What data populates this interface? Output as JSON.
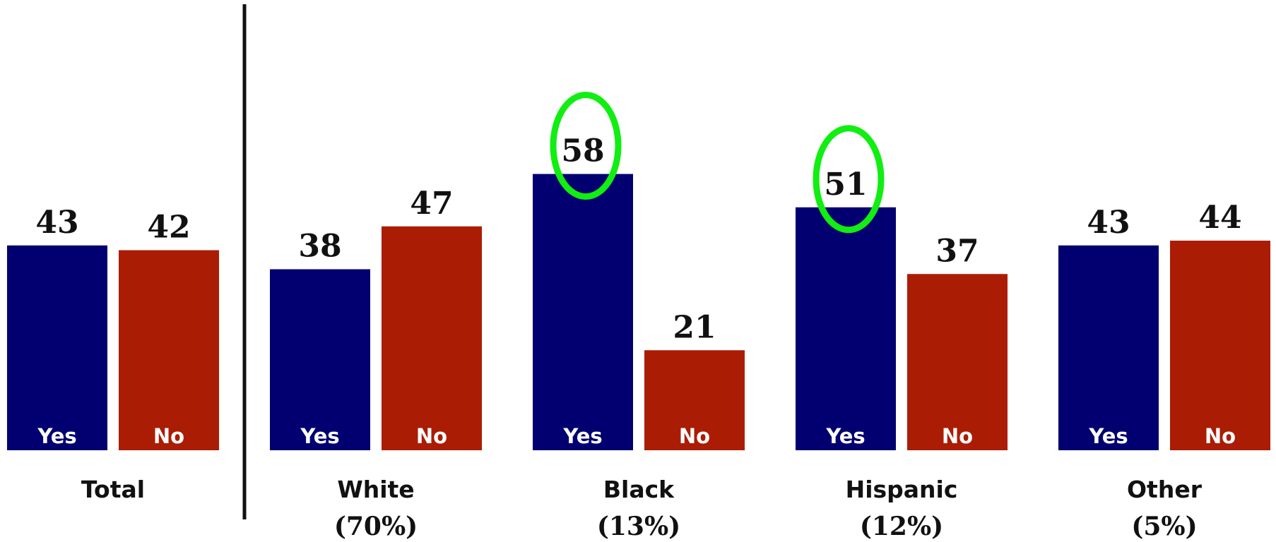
{
  "chart_data": {
    "type": "bar",
    "categories": [
      {
        "name": "Total",
        "share": ""
      },
      {
        "name": "White",
        "share": "(70%)"
      },
      {
        "name": "Black",
        "share": "(13%)"
      },
      {
        "name": "Hispanic",
        "share": "(12%)"
      },
      {
        "name": "Other",
        "share": "(5%)"
      }
    ],
    "series": [
      {
        "name": "Yes",
        "color": "#020070",
        "values": [
          43,
          38,
          58,
          51,
          43
        ]
      },
      {
        "name": "No",
        "color": "#ab1c05",
        "values": [
          42,
          47,
          21,
          37,
          44
        ]
      }
    ],
    "highlights": [
      {
        "category": "Black",
        "series": "Yes",
        "color": "#11ee11"
      },
      {
        "category": "Hispanic",
        "series": "Yes",
        "color": "#11ee11"
      }
    ],
    "ylim": [
      0,
      100
    ],
    "grid": false,
    "legend": "none",
    "divider_after": "Total",
    "title": "",
    "xlabel": "",
    "ylabel": ""
  }
}
